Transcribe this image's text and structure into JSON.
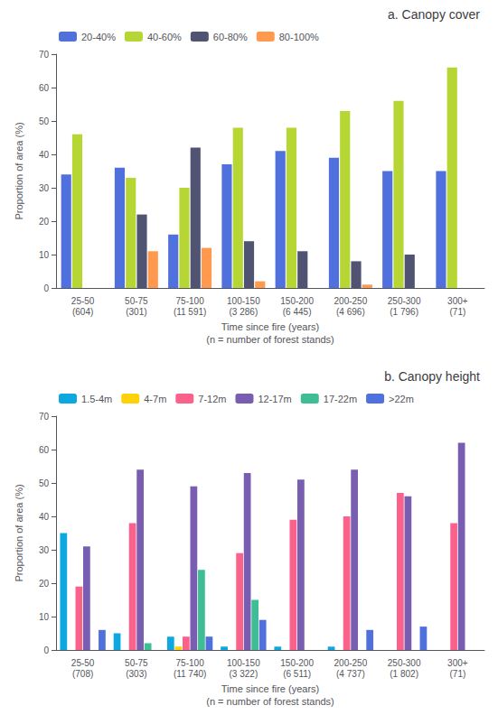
{
  "chart_data": [
    {
      "type": "bar",
      "title": "a. Canopy cover",
      "xlabel": "Time since fire (years)\n(n = number of forest stands)",
      "ylabel": "Proportion of area (%)",
      "categories": [
        "25-50\n(604)",
        "50-75\n(301)",
        "75-100\n(11 591)",
        "100-150\n(3 286)",
        "150-200\n(6 445)",
        "200-250\n(4 696)",
        "250-300\n(1 796)",
        "300+\n(71)"
      ],
      "series": [
        {
          "name": "20-40%",
          "values": [
            34,
            36,
            16,
            37,
            41,
            39,
            35,
            35
          ]
        },
        {
          "name": "40-60%",
          "values": [
            46,
            33,
            30,
            48,
            48,
            53,
            56,
            66
          ]
        },
        {
          "name": "60-80%",
          "values": [
            0,
            22,
            42,
            14,
            11,
            8,
            10,
            0
          ]
        },
        {
          "name": "80-100%",
          "values": [
            0,
            11,
            12,
            2,
            0,
            1,
            0,
            0
          ]
        }
      ],
      "ylim": [
        0,
        70
      ],
      "yticks": [
        0,
        10,
        20,
        30,
        40,
        50,
        60,
        70
      ],
      "grid": false,
      "legend": "upper left"
    },
    {
      "type": "bar",
      "title": "b. Canopy height",
      "xlabel": "Time since fire (years)\n(n = number of forest stands)",
      "ylabel": "Proportion of area (%)",
      "categories": [
        "25-50\n(708)",
        "50-75\n(303)",
        "75-100\n(11 740)",
        "100-150\n(3 322)",
        "150-200\n(6 511)",
        "200-250\n(4 737)",
        "250-300\n(1 802)",
        "300+\n(71)"
      ],
      "series": [
        {
          "name": "1.5-4m",
          "values": [
            35,
            5,
            4,
            1,
            1,
            1,
            0,
            0
          ]
        },
        {
          "name": "4-7m",
          "values": [
            0,
            0,
            1,
            0,
            0,
            0,
            0,
            0
          ]
        },
        {
          "name": "7-12m",
          "values": [
            19,
            38,
            4,
            29,
            39,
            40,
            47,
            38
          ]
        },
        {
          "name": "12-17m",
          "values": [
            31,
            54,
            49,
            53,
            51,
            54,
            46,
            62
          ]
        },
        {
          "name": "17-22m",
          "values": [
            0,
            2,
            24,
            15,
            0,
            0,
            0,
            0
          ]
        },
        {
          "name": ">22m",
          "values": [
            6,
            0,
            4,
            9,
            0,
            6,
            7,
            0
          ]
        }
      ],
      "ylim": [
        0,
        70
      ],
      "yticks": [
        0,
        10,
        20,
        30,
        40,
        50,
        60,
        70
      ],
      "grid": false,
      "legend": "upper left"
    }
  ]
}
